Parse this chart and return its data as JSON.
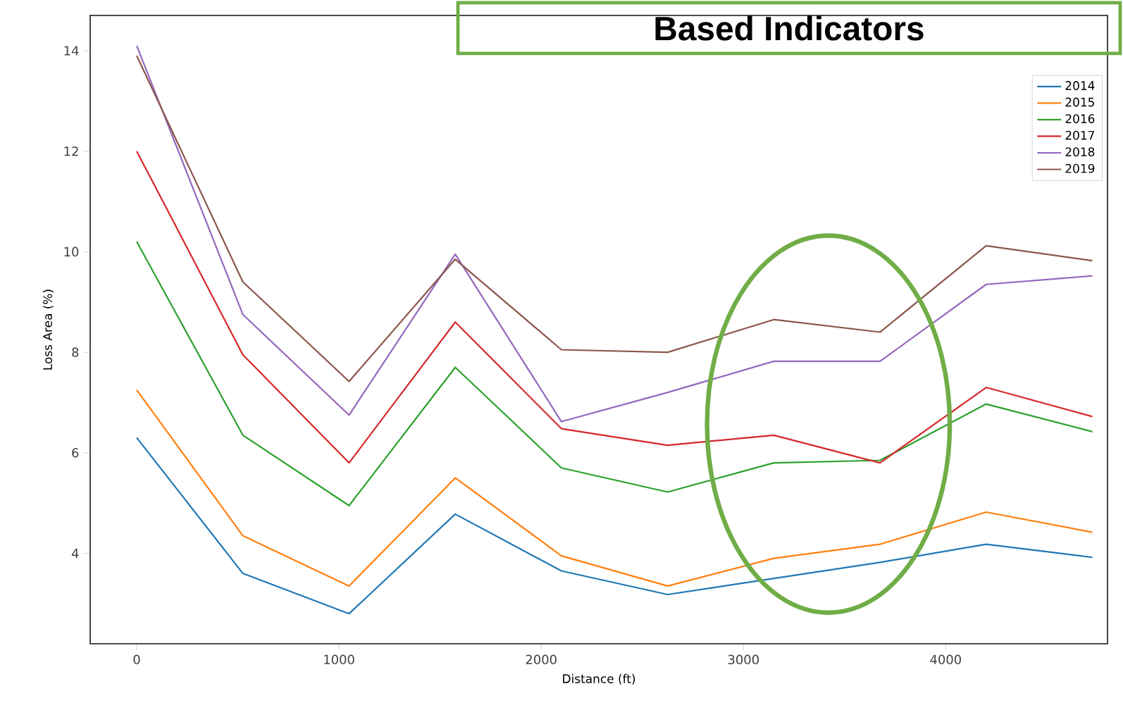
{
  "chart_data": {
    "type": "line",
    "title": "Based Indicators",
    "xlabel": "Distance (ft)",
    "ylabel": "Loss Area (%)",
    "x": [
      0,
      525,
      1050,
      1575,
      2100,
      2625,
      3150,
      3675,
      4200,
      4725
    ],
    "series": [
      {
        "name": "2014",
        "color": "#1f77b4",
        "values": [
          6.3,
          3.6,
          2.8,
          4.78,
          3.65,
          3.18,
          3.5,
          3.82,
          4.18,
          3.92
        ]
      },
      {
        "name": "2015",
        "color": "#ff7f0e",
        "values": [
          7.25,
          4.35,
          3.35,
          5.5,
          3.95,
          3.35,
          3.9,
          4.18,
          4.82,
          4.42
        ]
      },
      {
        "name": "2016",
        "color": "#2ca02c",
        "values": [
          10.2,
          6.35,
          4.95,
          7.7,
          5.7,
          5.22,
          5.8,
          5.85,
          6.97,
          6.42
        ]
      },
      {
        "name": "2017",
        "color": "#d62728",
        "values": [
          12.0,
          7.95,
          5.8,
          8.6,
          6.48,
          6.15,
          6.35,
          5.8,
          7.3,
          6.72
        ]
      },
      {
        "name": "2018",
        "color": "#9467bd",
        "values": [
          14.1,
          8.75,
          6.75,
          9.95,
          6.62,
          7.2,
          7.82,
          7.82,
          9.35,
          9.52
        ]
      },
      {
        "name": "2019",
        "color": "#8c564b",
        "values": [
          13.9,
          9.4,
          7.42,
          9.85,
          8.05,
          8.0,
          8.65,
          8.4,
          10.12,
          9.82
        ]
      }
    ],
    "xlim": [
      -230,
      4800
    ],
    "ylim": [
      2.2,
      14.7
    ],
    "xticks": [
      0,
      1000,
      2000,
      3000,
      4000
    ],
    "yticks": [
      4,
      6,
      8,
      10,
      12,
      14
    ],
    "grid": false,
    "legend": "top right",
    "marker": "none",
    "line_style": "solid"
  }
}
